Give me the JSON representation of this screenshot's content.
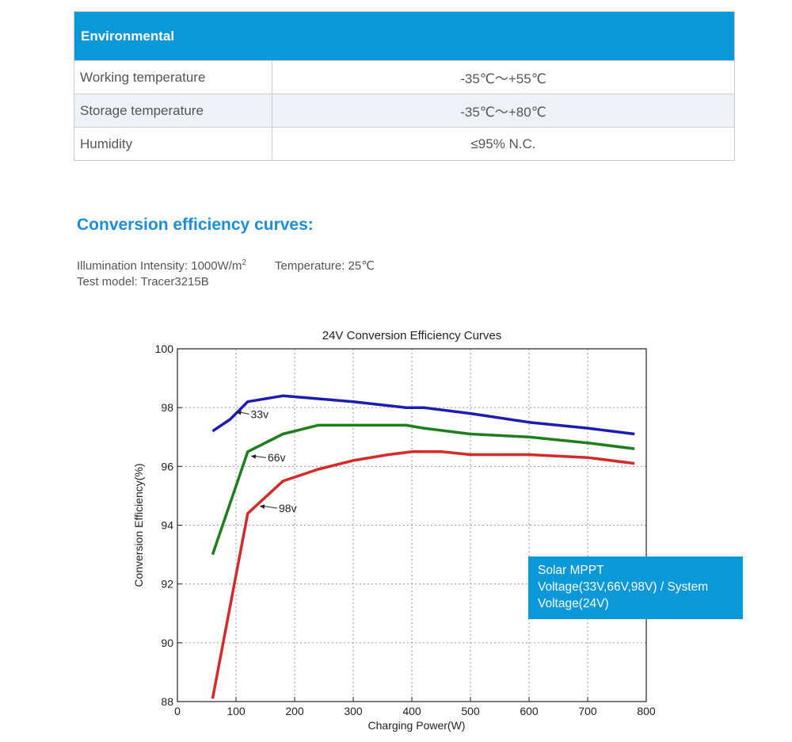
{
  "environmental": {
    "header": "Environmental",
    "rows": [
      {
        "label": "Working temperature",
        "value": "-35℃～+55℃"
      },
      {
        "label": "Storage temperature",
        "value": "-35℃～+80℃"
      },
      {
        "label": "Humidity",
        "value": "≤95% N.C."
      }
    ]
  },
  "conversion": {
    "title": "Conversion efficiency curves:",
    "illumination_label": "Illumination Intensity: 1000W/m",
    "illumination_sup": "2",
    "temperature": "Temperature: 25℃",
    "test_model": "Test model: Tracer3215B"
  },
  "legend_box": {
    "line1": "Solar MPPT",
    "line2": "Voltage(33V,66V,98V) / System",
    "line3": "Voltage(24V)"
  },
  "chart_data": {
    "type": "line",
    "title": "24V Conversion Efficiency Curves",
    "xlabel": "Charging Power(W)",
    "ylabel": "Conversion Efficiency(%)",
    "xlim": [
      0,
      800
    ],
    "ylim": [
      88,
      100
    ],
    "xticks": [
      0,
      100,
      200,
      300,
      400,
      500,
      600,
      700,
      800
    ],
    "yticks": [
      88,
      90,
      92,
      94,
      96,
      98,
      100
    ],
    "grid": true,
    "series": [
      {
        "name": "33v",
        "color": "#1c1cb0",
        "x": [
          60,
          90,
          120,
          180,
          240,
          300,
          390,
          420,
          500,
          600,
          700,
          780
        ],
        "y": [
          97.2,
          97.6,
          98.2,
          98.4,
          98.3,
          98.2,
          98.0,
          98.0,
          97.8,
          97.5,
          97.3,
          97.1
        ]
      },
      {
        "name": "66v",
        "color": "#1e7e1e",
        "x": [
          60,
          120,
          180,
          240,
          300,
          390,
          420,
          500,
          600,
          700,
          780
        ],
        "y": [
          93.0,
          96.5,
          97.1,
          97.4,
          97.4,
          97.4,
          97.3,
          97.1,
          97.0,
          96.8,
          96.6
        ]
      },
      {
        "name": "98v",
        "color": "#d42a2a",
        "x": [
          60,
          120,
          180,
          240,
          300,
          360,
          400,
          450,
          500,
          600,
          700,
          780
        ],
        "y": [
          88.1,
          94.4,
          95.5,
          95.9,
          96.2,
          96.4,
          96.5,
          96.5,
          96.4,
          96.4,
          96.3,
          96.1
        ]
      }
    ],
    "annotations": [
      {
        "text": "33v",
        "x": 125,
        "y": 97.78,
        "arrow_to": [
          100,
          97.85
        ]
      },
      {
        "text": "66v",
        "x": 154,
        "y": 96.3,
        "arrow_to": [
          125,
          96.35
        ]
      },
      {
        "text": "98v",
        "x": 173,
        "y": 94.58,
        "arrow_to": [
          140,
          94.65
        ]
      }
    ]
  }
}
